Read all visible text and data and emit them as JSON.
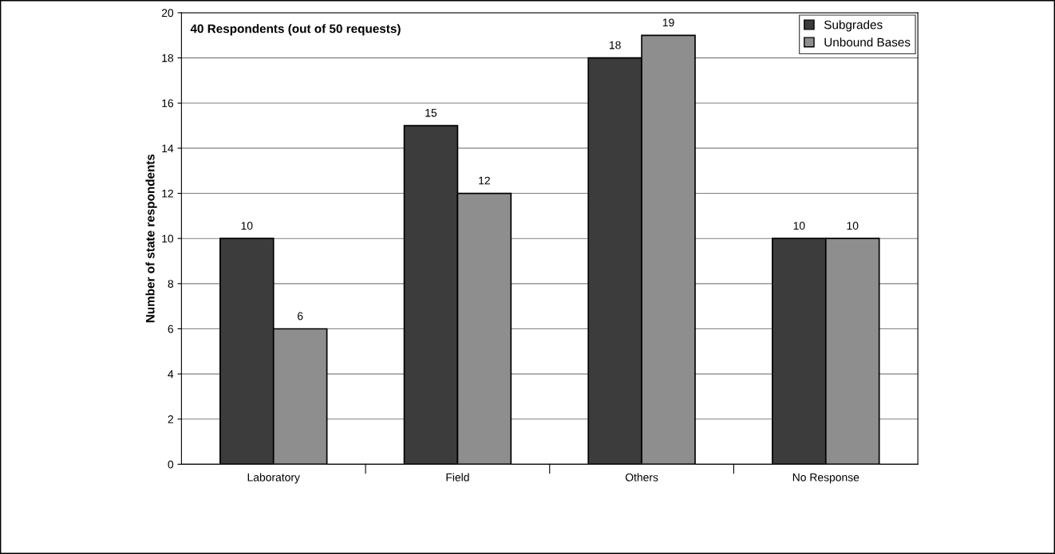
{
  "chart_data": {
    "type": "bar",
    "ylabel": "Number of state respondents",
    "annotations": [
      "40 Respondents (out of 50 requests)"
    ],
    "categories": [
      "Laboratory",
      "Field",
      "Others",
      "No Response"
    ],
    "series": [
      {
        "name": "Subgrades",
        "color": "#3c3c3c",
        "values": [
          10,
          15,
          18,
          10
        ]
      },
      {
        "name": "Unbound Bases",
        "color": "#8e8e8e",
        "values": [
          6,
          12,
          19,
          10
        ]
      }
    ],
    "ylim": [
      0,
      20
    ],
    "yticks": [
      0,
      2,
      4,
      6,
      8,
      10,
      12,
      14,
      16,
      18,
      20
    ],
    "grid": "y",
    "legend": "top right",
    "data_labels": true
  }
}
